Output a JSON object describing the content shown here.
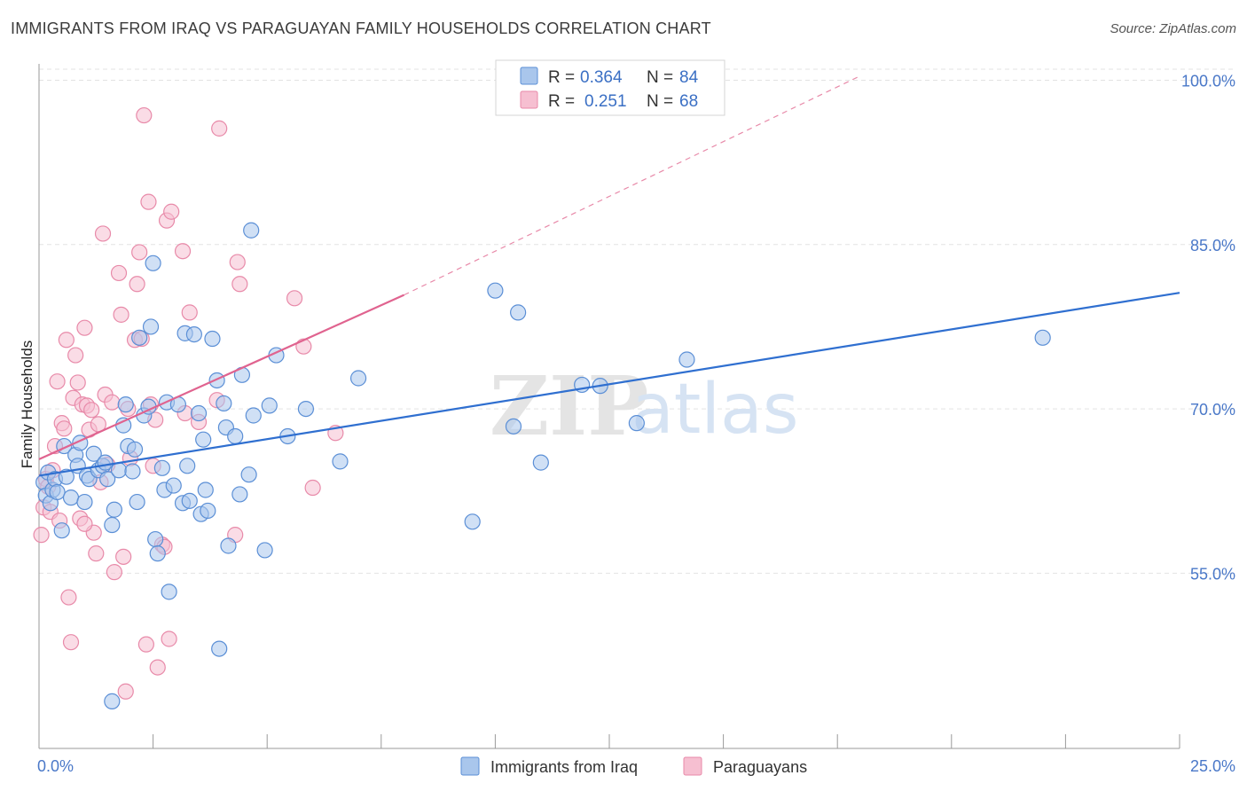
{
  "title": "IMMIGRANTS FROM IRAQ VS PARAGUAYAN FAMILY HOUSEHOLDS CORRELATION CHART",
  "source": "Source: ZipAtlas.com",
  "watermark": {
    "zip": "ZIP",
    "atlas": "atlas"
  },
  "colors": {
    "blue_fill": "#a9c6ec",
    "blue_stroke": "#5b8fd6",
    "blue_line": "#2f6fd0",
    "pink_fill": "#f6bfd1",
    "pink_stroke": "#e88aa9",
    "pink_line": "#e0638f",
    "grid": "#e3e3e3",
    "axis": "#9a9a9a",
    "label_blue": "#4a78c8"
  },
  "legend": {
    "rows": [
      {
        "r_label": "R =",
        "r_value": "0.364",
        "n_label": "N =",
        "n_value": "84",
        "series": "blue"
      },
      {
        "r_label": "R =",
        "r_value": "0.251",
        "n_label": "N =",
        "n_value": "68",
        "series": "pink"
      }
    ]
  },
  "chart_data": {
    "type": "scatter",
    "title": "IMMIGRANTS FROM IRAQ VS PARAGUAYAN FAMILY HOUSEHOLDS CORRELATION CHART",
    "xlabel": "",
    "ylabel": "Family Households",
    "xlim": [
      0,
      25
    ],
    "ylim": [
      39,
      101.5
    ],
    "x_tick_labels": [
      {
        "value": 0,
        "label": "0.0%"
      },
      {
        "value": 25,
        "label": "25.0%"
      }
    ],
    "x_minor_ticks": [
      2.5,
      5,
      7.5,
      10,
      12.5,
      15,
      17.5,
      20,
      22.5,
      25
    ],
    "y_ticks": [
      {
        "value": 55,
        "label": "55.0%"
      },
      {
        "value": 70,
        "label": "70.0%"
      },
      {
        "value": 85,
        "label": "85.0%"
      },
      {
        "value": 100,
        "label": "100.0%"
      }
    ],
    "grid": true,
    "legend_position": "bottom",
    "series": [
      {
        "name": "Immigrants from Iraq",
        "color": "blue",
        "trend": {
          "x0": 0,
          "y0": 63.9,
          "x1": 25,
          "y1": 80.6,
          "dashed_extension": false
        },
        "points": [
          [
            0.1,
            63.3
          ],
          [
            0.15,
            62.1
          ],
          [
            0.2,
            64.2
          ],
          [
            0.25,
            61.4
          ],
          [
            0.3,
            62.6
          ],
          [
            0.35,
            63.6
          ],
          [
            0.4,
            62.4
          ],
          [
            0.5,
            58.9
          ],
          [
            0.55,
            66.6
          ],
          [
            0.6,
            63.8
          ],
          [
            0.7,
            61.9
          ],
          [
            0.8,
            65.8
          ],
          [
            0.85,
            64.8
          ],
          [
            0.9,
            66.9
          ],
          [
            1.0,
            61.5
          ],
          [
            1.05,
            63.9
          ],
          [
            1.1,
            63.6
          ],
          [
            1.2,
            65.9
          ],
          [
            1.3,
            64.4
          ],
          [
            1.4,
            64.8
          ],
          [
            1.45,
            65.1
          ],
          [
            1.5,
            63.6
          ],
          [
            1.6,
            59.4
          ],
          [
            1.65,
            60.8
          ],
          [
            1.75,
            64.4
          ],
          [
            1.85,
            68.5
          ],
          [
            1.9,
            70.4
          ],
          [
            1.95,
            66.6
          ],
          [
            2.05,
            64.3
          ],
          [
            2.1,
            66.3
          ],
          [
            2.15,
            61.5
          ],
          [
            2.2,
            76.5
          ],
          [
            2.3,
            69.4
          ],
          [
            2.4,
            70.2
          ],
          [
            2.45,
            77.5
          ],
          [
            2.5,
            83.3
          ],
          [
            2.55,
            58.1
          ],
          [
            2.6,
            56.8
          ],
          [
            2.7,
            64.6
          ],
          [
            2.75,
            62.6
          ],
          [
            2.8,
            70.6
          ],
          [
            2.85,
            53.3
          ],
          [
            2.95,
            63.0
          ],
          [
            3.05,
            70.4
          ],
          [
            3.15,
            61.4
          ],
          [
            3.2,
            76.9
          ],
          [
            3.25,
            64.8
          ],
          [
            3.3,
            61.6
          ],
          [
            3.4,
            76.8
          ],
          [
            3.5,
            69.6
          ],
          [
            3.55,
            60.4
          ],
          [
            3.6,
            67.2
          ],
          [
            3.65,
            62.6
          ],
          [
            3.7,
            60.7
          ],
          [
            3.8,
            76.4
          ],
          [
            3.9,
            72.6
          ],
          [
            3.95,
            48.1
          ],
          [
            4.05,
            70.5
          ],
          [
            4.1,
            68.3
          ],
          [
            4.15,
            57.5
          ],
          [
            4.3,
            67.5
          ],
          [
            4.4,
            62.2
          ],
          [
            4.45,
            73.1
          ],
          [
            4.6,
            64.0
          ],
          [
            4.65,
            86.3
          ],
          [
            4.7,
            69.4
          ],
          [
            4.95,
            57.1
          ],
          [
            5.05,
            70.3
          ],
          [
            5.2,
            74.9
          ],
          [
            5.45,
            67.5
          ],
          [
            5.85,
            70.0
          ],
          [
            6.6,
            65.2
          ],
          [
            7.0,
            72.8
          ],
          [
            9.5,
            59.7
          ],
          [
            10.0,
            80.8
          ],
          [
            10.4,
            68.4
          ],
          [
            10.5,
            78.8
          ],
          [
            11.0,
            65.1
          ],
          [
            11.9,
            72.2
          ],
          [
            12.3,
            72.1
          ],
          [
            13.1,
            68.7
          ],
          [
            14.2,
            74.5
          ],
          [
            22.0,
            76.5
          ],
          [
            1.6,
            43.3
          ]
        ]
      },
      {
        "name": "Paraguayans",
        "color": "pink",
        "trend": {
          "x0": 0,
          "y0": 65.4,
          "x1": 8.0,
          "y1": 80.4,
          "dashed_to": {
            "x": 18.0,
            "y": 100.4
          }
        },
        "points": [
          [
            0.05,
            58.5
          ],
          [
            0.1,
            61.0
          ],
          [
            0.15,
            63.6
          ],
          [
            0.2,
            62.9
          ],
          [
            0.25,
            60.6
          ],
          [
            0.3,
            64.4
          ],
          [
            0.35,
            66.6
          ],
          [
            0.4,
            72.5
          ],
          [
            0.45,
            59.8
          ],
          [
            0.5,
            68.7
          ],
          [
            0.55,
            68.2
          ],
          [
            0.6,
            76.3
          ],
          [
            0.65,
            52.8
          ],
          [
            0.7,
            48.7
          ],
          [
            0.75,
            71.0
          ],
          [
            0.8,
            74.9
          ],
          [
            0.85,
            72.4
          ],
          [
            0.9,
            60.0
          ],
          [
            0.95,
            70.4
          ],
          [
            1.0,
            77.4
          ],
          [
            1.05,
            70.3
          ],
          [
            1.1,
            68.1
          ],
          [
            1.15,
            69.9
          ],
          [
            1.2,
            58.7
          ],
          [
            1.25,
            56.8
          ],
          [
            1.3,
            68.6
          ],
          [
            1.35,
            63.3
          ],
          [
            1.4,
            86.0
          ],
          [
            1.45,
            71.3
          ],
          [
            1.5,
            64.9
          ],
          [
            1.6,
            70.6
          ],
          [
            1.65,
            55.1
          ],
          [
            1.75,
            82.4
          ],
          [
            1.8,
            78.6
          ],
          [
            1.85,
            56.5
          ],
          [
            1.9,
            44.2
          ],
          [
            1.95,
            70.0
          ],
          [
            2.0,
            65.5
          ],
          [
            2.1,
            76.3
          ],
          [
            2.15,
            81.4
          ],
          [
            2.2,
            84.3
          ],
          [
            2.25,
            76.4
          ],
          [
            2.3,
            96.8
          ],
          [
            2.35,
            48.5
          ],
          [
            2.4,
            88.9
          ],
          [
            2.45,
            70.4
          ],
          [
            2.5,
            64.8
          ],
          [
            2.55,
            69.0
          ],
          [
            2.6,
            46.4
          ],
          [
            2.7,
            57.6
          ],
          [
            2.75,
            57.4
          ],
          [
            2.8,
            87.2
          ],
          [
            2.85,
            49.0
          ],
          [
            2.9,
            88.0
          ],
          [
            3.15,
            84.4
          ],
          [
            3.2,
            69.6
          ],
          [
            3.3,
            78.8
          ],
          [
            3.5,
            68.8
          ],
          [
            3.9,
            70.8
          ],
          [
            3.95,
            95.6
          ],
          [
            4.3,
            58.5
          ],
          [
            4.35,
            83.4
          ],
          [
            4.4,
            81.4
          ],
          [
            5.6,
            80.1
          ],
          [
            5.8,
            75.7
          ],
          [
            6.0,
            62.8
          ],
          [
            6.5,
            67.8
          ],
          [
            1.0,
            59.5
          ]
        ]
      }
    ]
  },
  "bottom_legend": [
    {
      "label": "Immigrants from Iraq",
      "series": "blue"
    },
    {
      "label": "Paraguayans",
      "series": "pink"
    }
  ]
}
